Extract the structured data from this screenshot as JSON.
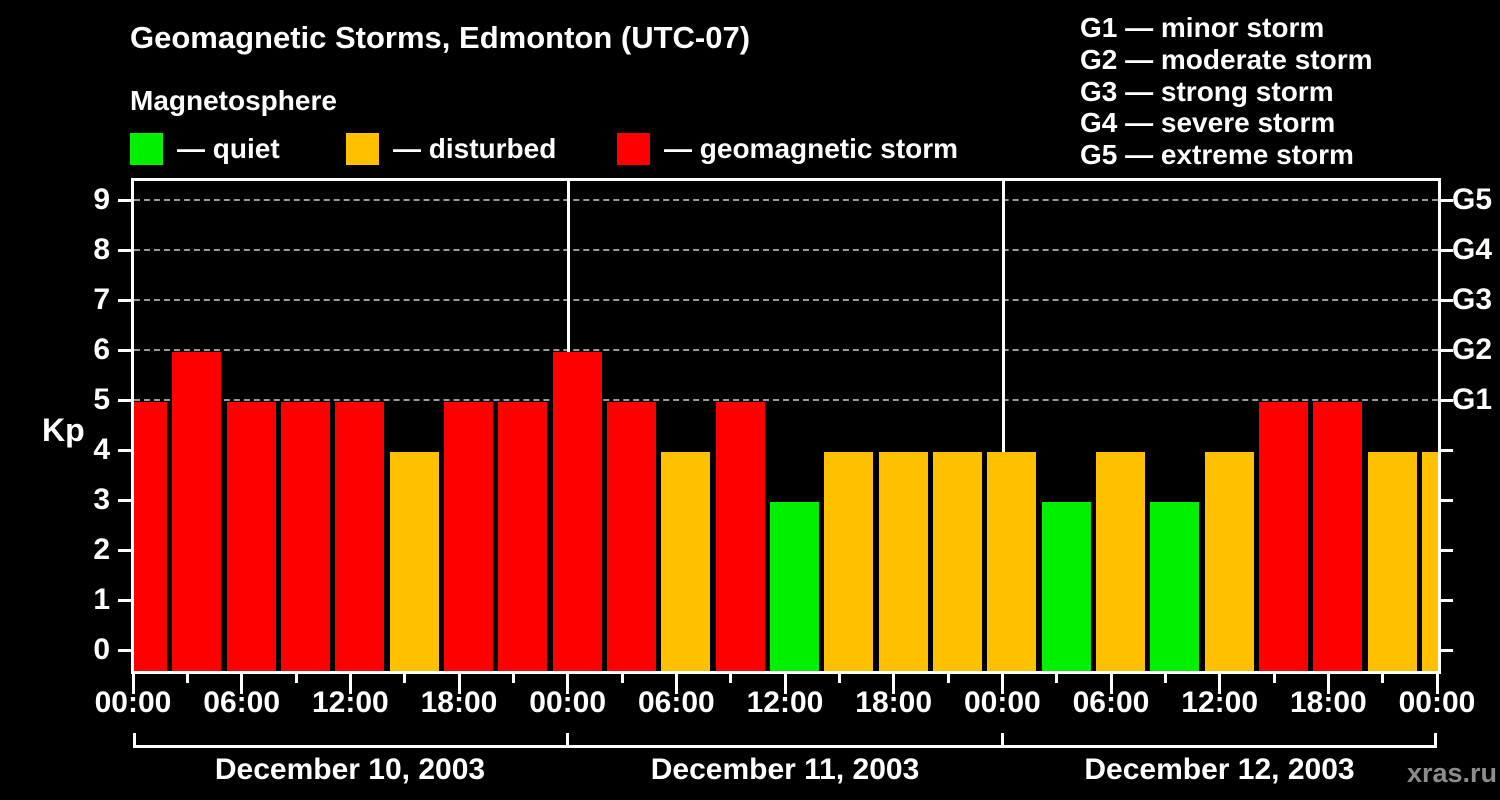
{
  "title": "Geomagnetic Storms, Edmonton (UTC-07)",
  "subtitle": "Magnetosphere",
  "legend": {
    "items": [
      {
        "level": "quiet",
        "label": "— quiet"
      },
      {
        "level": "disturbed",
        "label": "— disturbed"
      },
      {
        "level": "storm",
        "label": "— geomagnetic storm"
      }
    ]
  },
  "storm_scale_legend": [
    "G1 — minor storm",
    "G2 — moderate storm",
    "G3 — strong storm",
    "G4 — severe storm",
    "G5 — extreme storm"
  ],
  "colors": {
    "quiet": "#00f000",
    "disturbed": "#ffc000",
    "storm": "#ff0000",
    "background": "#000000",
    "frame": "#ffffff",
    "grid": "#9a9a9a",
    "watermark": "#8c8c8c"
  },
  "y_axis": {
    "label": "Kp",
    "ticks": [
      "0",
      "1",
      "2",
      "3",
      "4",
      "5",
      "6",
      "7",
      "8",
      "9"
    ]
  },
  "right_axis": {
    "labels": [
      "G1",
      "G2",
      "G3",
      "G4",
      "G5"
    ],
    "levels": [
      5,
      6,
      7,
      8,
      9
    ]
  },
  "x_axis": {
    "tick_labels": [
      "00:00",
      "06:00",
      "12:00",
      "18:00",
      "00:00",
      "06:00",
      "12:00",
      "18:00",
      "00:00",
      "06:00",
      "12:00",
      "18:00",
      "00:00"
    ]
  },
  "day_labels": [
    "December 10, 2003",
    "December 11, 2003",
    "December 12, 2003"
  ],
  "watermark": "xras.ru",
  "chart_data": {
    "type": "bar",
    "title": "Geomagnetic Storms, Edmonton (UTC-07)",
    "subtitle": "Magnetosphere",
    "xlabel": "",
    "ylabel": "Kp",
    "ylim": [
      0,
      9.4
    ],
    "grid_levels": [
      5,
      6,
      7,
      8,
      9
    ],
    "grid": "dashed, only at G1–G5 levels",
    "legend_position": "top",
    "bar_interval_hours": 3,
    "days": [
      {
        "date": "December 10, 2003",
        "kp": [
          5,
          6,
          5,
          5,
          5,
          4,
          5,
          5
        ]
      },
      {
        "date": "December 11, 2003",
        "kp": [
          6,
          5,
          4,
          5,
          3,
          4,
          4,
          4
        ]
      },
      {
        "date": "December 12, 2003",
        "kp": [
          4,
          3,
          4,
          3,
          4,
          5,
          5,
          4
        ]
      }
    ],
    "partial_next_day_kp": 4,
    "level_rules": {
      "quiet": "Kp <= 3",
      "disturbed": "Kp == 4",
      "storm": "Kp >= 5"
    },
    "right_axis_mapping": {
      "G1": 5,
      "G2": 6,
      "G3": 7,
      "G4": 8,
      "G5": 9
    }
  }
}
